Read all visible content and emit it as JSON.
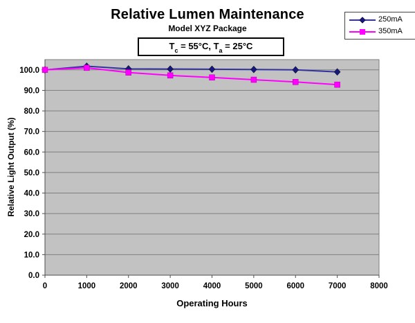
{
  "chart_data": {
    "type": "line",
    "title": "Relative Lumen Maintenance",
    "subtitle": "Model XYZ Package",
    "annotation_parts": {
      "p1": "T",
      "sub1": "c",
      "p2": " = 55°C, T",
      "sub2": "a",
      "p3": " = 25°C"
    },
    "xlabel": "Operating Hours",
    "ylabel": "Relative Light Output (%)",
    "x": [
      0,
      1000,
      2000,
      3000,
      4000,
      5000,
      6000,
      7000
    ],
    "xlim": [
      0,
      8000
    ],
    "ylim": [
      0,
      105
    ],
    "x_tick_values": [
      0,
      1000,
      2000,
      3000,
      4000,
      5000,
      6000,
      7000,
      8000
    ],
    "x_tick_labels": [
      "0",
      "1000",
      "2000",
      "3000",
      "4000",
      "5000",
      "6000",
      "7000",
      "8000"
    ],
    "y_tick_values": [
      0,
      10,
      20,
      30,
      40,
      50,
      60,
      70,
      80,
      90,
      100
    ],
    "y_tick_labels": [
      "0.0",
      "10.0",
      "20.0",
      "30.0",
      "40.0",
      "50.0",
      "60.0",
      "70.0",
      "80.0",
      "90.0",
      "100.0"
    ],
    "grid": "horizontal",
    "legend_position": "top-right",
    "colors": {
      "plot_bg": "#C2C2C2",
      "grid_color": "#7F7F7F",
      "plot_border": "#7F7F7F",
      "axis_color": "#4D4D4D",
      "tick_label_color": "#000000"
    },
    "series": [
      {
        "name": "250mA",
        "line_color": "#3333A0",
        "marker": "diamond",
        "marker_color": "#17177D",
        "values": [
          100.0,
          101.8,
          100.5,
          100.4,
          100.3,
          100.2,
          100.0,
          99.0
        ]
      },
      {
        "name": "350mA",
        "line_color": "#FF00FF",
        "marker": "square",
        "marker_color": "#FF00FF",
        "values": [
          100.0,
          101.0,
          98.7,
          97.3,
          96.3,
          95.2,
          94.1,
          92.8
        ]
      }
    ]
  }
}
